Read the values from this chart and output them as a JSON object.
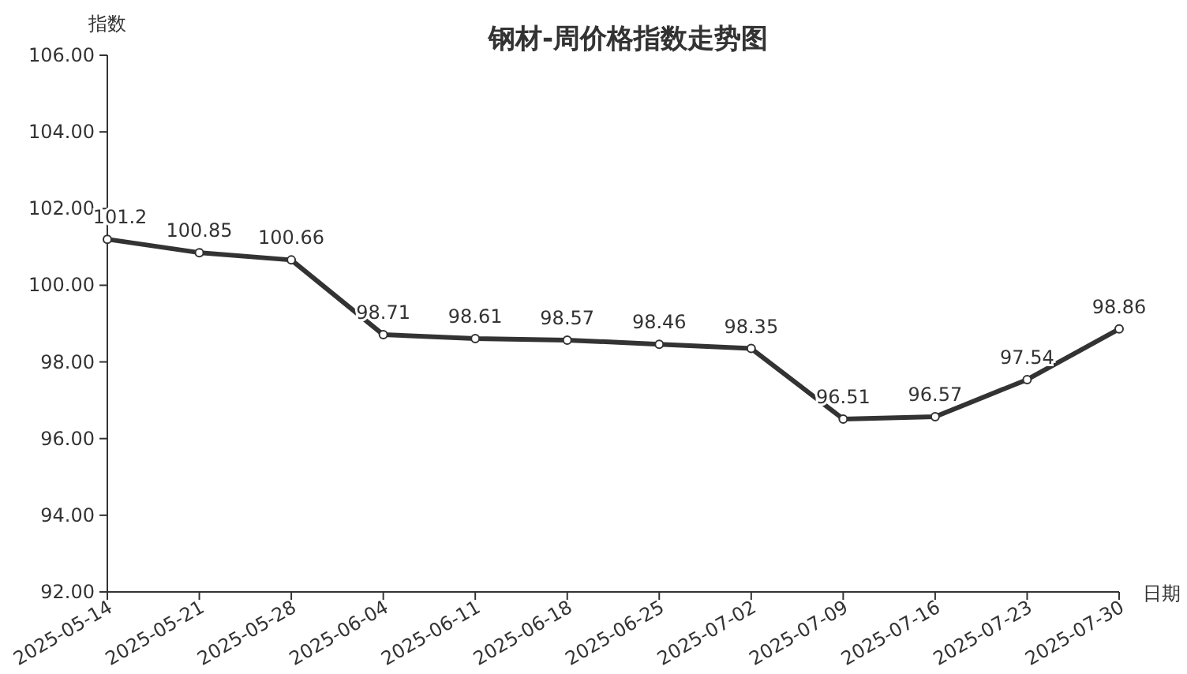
{
  "chart_data": {
    "type": "line",
    "title": "钢材-周价格指数走势图",
    "xlabel": "日期",
    "ylabel": "指数",
    "categories": [
      "2025-05-14",
      "2025-05-21",
      "2025-05-28",
      "2025-06-04",
      "2025-06-11",
      "2025-06-18",
      "2025-06-25",
      "2025-07-02",
      "2025-07-09",
      "2025-07-16",
      "2025-07-23",
      "2025-07-30"
    ],
    "series": [
      {
        "color": "#333333",
        "values": [
          101.2,
          100.85,
          100.66,
          98.71,
          98.61,
          98.57,
          98.46,
          98.35,
          96.51,
          96.57,
          97.54,
          98.86
        ]
      }
    ],
    "ylim": [
      92,
      106
    ],
    "yticks": [
      {
        "value": 92,
        "label": "92.00"
      },
      {
        "value": 94,
        "label": "94.00"
      },
      {
        "value": 96,
        "label": "96.00"
      },
      {
        "value": 98,
        "label": "98.00"
      },
      {
        "value": 100,
        "label": "100.00"
      },
      {
        "value": 102,
        "label": "102.00"
      },
      {
        "value": 104,
        "label": "104.00"
      },
      {
        "value": 106,
        "label": "106.00"
      }
    ],
    "data_labels": true,
    "marker": "circle",
    "line_style": "solid",
    "grid": false
  }
}
